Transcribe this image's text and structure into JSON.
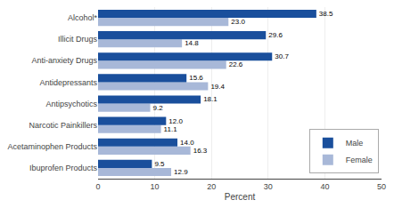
{
  "chart_data": {
    "type": "bar",
    "orientation": "horizontal",
    "categories": [
      "Ibuprofen Products",
      "Acetaminophen Products",
      "Narcotic Painkillers",
      "Antipsychotics",
      "Antidepressants",
      "Anti-anxiety Drugs",
      "Illicit Drugs",
      "Alcohol*"
    ],
    "series": [
      {
        "name": "Male",
        "color": "#1A4F9C",
        "values": [
          9.5,
          14.0,
          12.0,
          18.1,
          15.6,
          30.7,
          29.6,
          38.5
        ],
        "value_labels": [
          "9.5",
          "14.0",
          "12.0",
          "18.1",
          "15.6",
          "30.7",
          "29.6",
          "38.5"
        ]
      },
      {
        "name": "Female",
        "color": "#A8B8D8",
        "values": [
          12.9,
          16.3,
          11.1,
          9.2,
          19.4,
          22.6,
          14.8,
          23.0
        ],
        "value_labels": [
          "12.9",
          "16.3",
          "11.1",
          "9.2",
          "19.4",
          "22.6",
          "14.8",
          "23.0"
        ]
      }
    ],
    "xlabel": "Percent",
    "xlim": [
      0,
      50
    ],
    "xticks": [
      0,
      10,
      20,
      30,
      40,
      50
    ],
    "grid": true,
    "legend": "lower right",
    "data_labels": true
  }
}
